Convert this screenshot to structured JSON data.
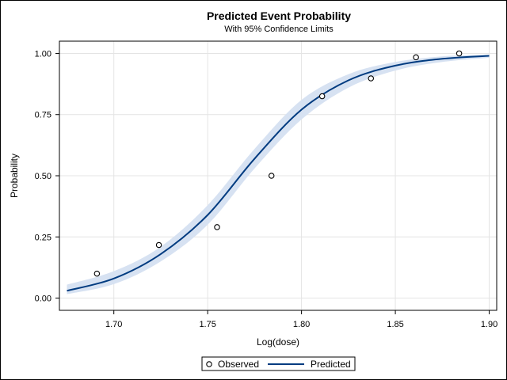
{
  "chart_data": {
    "type": "line",
    "title": "Predicted Event Probability",
    "subtitle": "With 95% Confidence Limits",
    "xlabel": "Log(dose)",
    "ylabel": "Probability",
    "xlim": [
      1.671,
      1.904
    ],
    "ylim": [
      -0.05,
      1.05
    ],
    "x_ticks": [
      "1.70",
      "1.75",
      "1.80",
      "1.85",
      "1.90"
    ],
    "y_ticks": [
      "0.00",
      "0.25",
      "0.50",
      "0.75",
      "1.00"
    ],
    "grid": true,
    "legend_position": "bottom",
    "series": [
      {
        "name": "Observed",
        "kind": "scatter",
        "marker": "open-circle",
        "x": [
          1.691,
          1.724,
          1.755,
          1.784,
          1.811,
          1.837,
          1.861,
          1.884
        ],
        "y": [
          0.1,
          0.217,
          0.29,
          0.5,
          0.825,
          0.898,
          0.984,
          1.0
        ]
      },
      {
        "name": "Predicted",
        "kind": "line",
        "x": [
          1.675,
          1.7,
          1.725,
          1.75,
          1.775,
          1.8,
          1.825,
          1.85,
          1.875,
          1.9
        ],
        "y": [
          0.03,
          0.08,
          0.18,
          0.34,
          0.57,
          0.77,
          0.89,
          0.95,
          0.978,
          0.99
        ],
        "lower": [
          0.016,
          0.057,
          0.15,
          0.3,
          0.53,
          0.73,
          0.86,
          0.93,
          0.965,
          0.982
        ],
        "upper": [
          0.055,
          0.11,
          0.21,
          0.38,
          0.61,
          0.81,
          0.915,
          0.965,
          0.988,
          0.995
        ]
      }
    ],
    "colors": {
      "line": "#003b80",
      "band": "#d7e2f2",
      "grid": "#e4e4e4",
      "marker": "#000000"
    }
  }
}
